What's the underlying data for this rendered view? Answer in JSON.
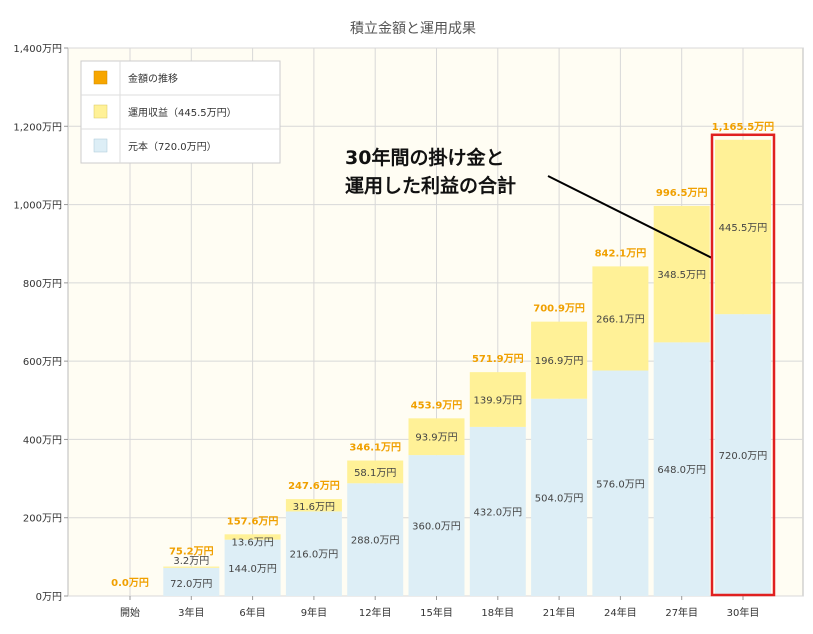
{
  "chart_data": {
    "type": "bar",
    "stacked": true,
    "title": "積立金額と運用成果",
    "categories": [
      "開始",
      "3年目",
      "6年目",
      "9年目",
      "12年目",
      "15年目",
      "18年目",
      "21年目",
      "24年目",
      "27年目",
      "30年目"
    ],
    "series": [
      {
        "name": "元本（720.0万円）",
        "color": "#ddeef6",
        "values": [
          0,
          72.0,
          144.0,
          216.0,
          288.0,
          360.0,
          432.0,
          504.0,
          576.0,
          648.0,
          720.0
        ],
        "labels": [
          "",
          "72.0万円",
          "144.0万円",
          "216.0万円",
          "288.0万円",
          "360.0万円",
          "432.0万円",
          "504.0万円",
          "576.0万円",
          "648.0万円",
          "720.0万円"
        ]
      },
      {
        "name": "運用収益（445.5万円）",
        "color": "#fff197",
        "values": [
          0,
          3.2,
          13.6,
          31.6,
          58.1,
          93.9,
          139.9,
          196.9,
          266.1,
          348.5,
          445.5
        ],
        "labels": [
          "",
          "3.2万円",
          "13.6万円",
          "31.6万円",
          "58.1万円",
          "93.9万円",
          "139.9万円",
          "196.9万円",
          "266.1万円",
          "348.5万円",
          "445.5万円"
        ]
      }
    ],
    "totals": [
      0.0,
      75.2,
      157.6,
      247.6,
      346.1,
      453.9,
      571.9,
      700.9,
      842.1,
      996.5,
      1165.5
    ],
    "total_labels": [
      "0.0万円",
      "75.2万円",
      "157.6万円",
      "247.6万円",
      "346.1万円",
      "453.9万円",
      "571.9万円",
      "700.9万円",
      "842.1万円",
      "996.5万円",
      "1,165.5万円"
    ],
    "total_series_name": "金額の推移",
    "total_color": "#f7a600",
    "ylim": [
      0,
      1400
    ],
    "yticks": [
      0,
      200,
      400,
      600,
      800,
      1000,
      1200,
      1400
    ],
    "ytick_labels": [
      "0万円",
      "200万円",
      "400万円",
      "600万円",
      "800万円",
      "1,000万円",
      "1,200万円",
      "1,400万円"
    ],
    "grid": true,
    "legend_position": "top-left",
    "annotation": {
      "lines": [
        "30年間の掛け金と",
        "運用した利益の合計"
      ],
      "target_category": "30年目",
      "highlight_color": "#e02020"
    }
  }
}
